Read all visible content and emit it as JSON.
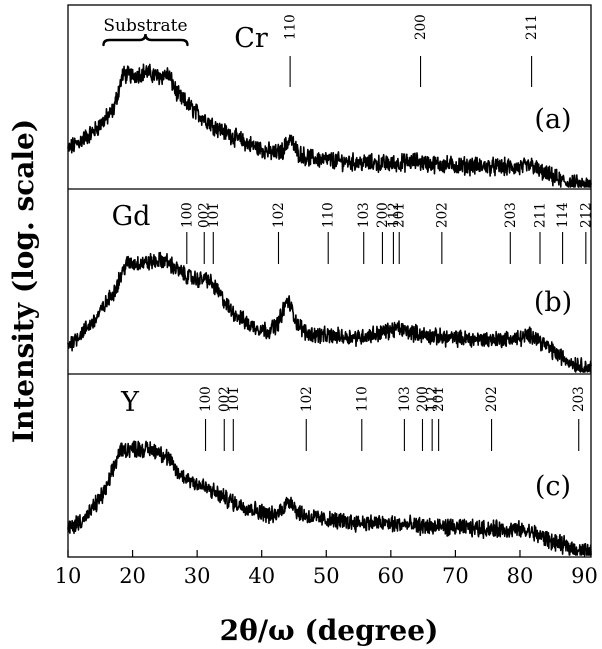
{
  "chart_data": {
    "type": "line",
    "xlabel": "2θ/ω (degree)",
    "ylabel": "Intensity (log. scale)",
    "xlim": [
      10,
      91
    ],
    "xticks": [
      10,
      20,
      30,
      40,
      50,
      60,
      70,
      80,
      90
    ],
    "grid": false,
    "substrate_annotation": {
      "label": "Substrate",
      "x_range": [
        15.5,
        28.5
      ]
    },
    "panels": [
      {
        "letter": "(a)",
        "element": "Cr",
        "peaks": [
          {
            "hkl": "110",
            "x": 44.4
          },
          {
            "hkl": "200",
            "x": 64.6
          },
          {
            "hkl": "211",
            "x": 81.8
          }
        ],
        "profile": {
          "x": [
            10,
            14,
            17,
            18.5,
            20,
            22,
            24,
            25.5,
            27,
            30,
            33,
            36,
            39,
            42,
            43.2,
            44.4,
            45.5,
            47,
            50,
            55,
            60,
            64,
            66,
            70,
            75,
            80,
            82,
            83,
            85,
            87,
            89,
            91
          ],
          "y": [
            0.28,
            0.42,
            0.58,
            0.86,
            0.85,
            0.88,
            0.84,
            0.86,
            0.7,
            0.56,
            0.45,
            0.37,
            0.3,
            0.25,
            0.27,
            0.37,
            0.26,
            0.22,
            0.2,
            0.18,
            0.17,
            0.19,
            0.17,
            0.16,
            0.15,
            0.14,
            0.16,
            0.11,
            0.07,
            0.03,
            0.01,
            0.0
          ]
        }
      },
      {
        "letter": "(b)",
        "element": "Gd",
        "peaks": [
          {
            "hkl": "100",
            "x": 28.4
          },
          {
            "hkl": "002",
            "x": 31.1
          },
          {
            "hkl": "101",
            "x": 32.5
          },
          {
            "hkl": "102",
            "x": 42.6
          },
          {
            "hkl": "110",
            "x": 50.3
          },
          {
            "hkl": "103",
            "x": 55.8
          },
          {
            "hkl": "200",
            "x": 58.7
          },
          {
            "hkl": "112",
            "x": 60.4
          },
          {
            "hkl": "201",
            "x": 61.3
          },
          {
            "hkl": "202",
            "x": 67.9
          },
          {
            "hkl": "203",
            "x": 78.5
          },
          {
            "hkl": "211",
            "x": 83.1
          },
          {
            "hkl": "114",
            "x": 86.6
          },
          {
            "hkl": "212",
            "x": 90.2
          }
        ],
        "profile": {
          "x": [
            10,
            14,
            17,
            19,
            22,
            25,
            26,
            28,
            30,
            31.5,
            33,
            35,
            38,
            41,
            42.5,
            44,
            45.5,
            47,
            50,
            55,
            58,
            61,
            64,
            67,
            70,
            75,
            80,
            82,
            84,
            86,
            88,
            91
          ],
          "y": [
            0.2,
            0.4,
            0.63,
            0.87,
            0.88,
            0.9,
            0.86,
            0.78,
            0.74,
            0.75,
            0.66,
            0.5,
            0.37,
            0.32,
            0.38,
            0.58,
            0.38,
            0.3,
            0.28,
            0.27,
            0.3,
            0.34,
            0.3,
            0.27,
            0.26,
            0.25,
            0.26,
            0.29,
            0.2,
            0.12,
            0.06,
            0.01
          ]
        }
      },
      {
        "letter": "(c)",
        "element": "Y",
        "peaks": [
          {
            "hkl": "100",
            "x": 31.3
          },
          {
            "hkl": "002",
            "x": 34.2
          },
          {
            "hkl": "101",
            "x": 35.6
          },
          {
            "hkl": "102",
            "x": 46.9
          },
          {
            "hkl": "110",
            "x": 55.5
          },
          {
            "hkl": "103",
            "x": 62.1
          },
          {
            "hkl": "200",
            "x": 64.9
          },
          {
            "hkl": "112",
            "x": 66.4
          },
          {
            "hkl": "201",
            "x": 67.4
          },
          {
            "hkl": "202",
            "x": 75.6
          },
          {
            "hkl": "203",
            "x": 89.1
          }
        ],
        "profile": {
          "x": [
            10,
            13,
            16,
            18,
            20,
            22,
            24,
            25.5,
            27,
            30,
            33,
            36,
            39,
            42,
            43.5,
            44.5,
            45.5,
            47,
            50,
            55,
            60,
            65,
            70,
            75,
            80,
            82,
            84,
            86,
            88,
            90,
            91
          ],
          "y": [
            0.2,
            0.3,
            0.52,
            0.82,
            0.84,
            0.83,
            0.82,
            0.76,
            0.64,
            0.56,
            0.48,
            0.4,
            0.35,
            0.3,
            0.38,
            0.43,
            0.34,
            0.3,
            0.27,
            0.25,
            0.24,
            0.22,
            0.21,
            0.2,
            0.19,
            0.17,
            0.12,
            0.08,
            0.05,
            0.02,
            0.01
          ]
        }
      }
    ]
  }
}
